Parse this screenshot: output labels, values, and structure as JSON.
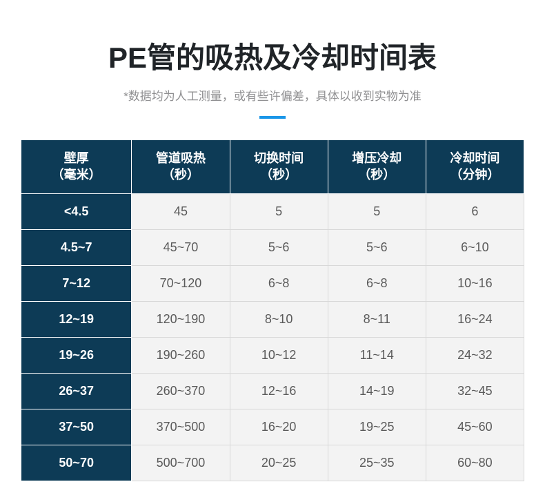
{
  "title": "PE管的吸热及冷却时间表",
  "subtitle": "*数据均为人工测量，或有些许偏差，具体以收到实物为准",
  "colors": {
    "header_bg": "#0d3b56",
    "header_text": "#ffffff",
    "cell_bg": "#f3f3f3",
    "cell_text": "#5a5a5a",
    "title_color": "#202428",
    "subtitle_color": "#909092",
    "underline_color": "#1a96e8",
    "border_color": "#d8d8d8"
  },
  "table": {
    "columns": [
      "壁厚\n（毫米）",
      "管道吸热\n（秒）",
      "切换时间\n（秒）",
      "增压冷却\n（秒）",
      "冷却时间\n（分钟）"
    ],
    "rows": [
      [
        "<4.5",
        "45",
        "5",
        "5",
        "6"
      ],
      [
        "4.5~7",
        "45~70",
        "5~6",
        "5~6",
        "6~10"
      ],
      [
        "7~12",
        "70~120",
        "6~8",
        "6~8",
        "10~16"
      ],
      [
        "12~19",
        "120~190",
        "8~10",
        "8~11",
        "16~24"
      ],
      [
        "19~26",
        "190~260",
        "10~12",
        "11~14",
        "24~32"
      ],
      [
        "26~37",
        "260~370",
        "12~16",
        "14~19",
        "32~45"
      ],
      [
        "37~50",
        "370~500",
        "16~20",
        "19~25",
        "45~60"
      ],
      [
        "50~70",
        "500~700",
        "20~25",
        "25~35",
        "60~80"
      ]
    ]
  }
}
